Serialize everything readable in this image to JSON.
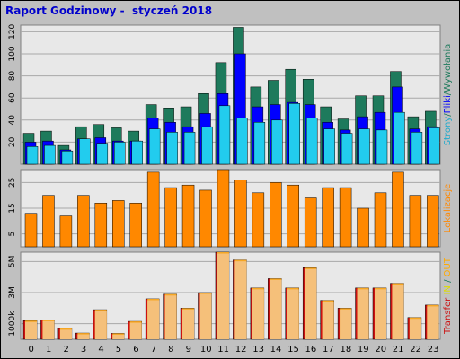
{
  "report_title": "Raport Godzinowy -  styczeń 2018",
  "colors": {
    "background": "#c0c0c0",
    "plot_bg": "#e8e8e8",
    "grid": "#a8a8a8",
    "title": "#0000cc",
    "pages": "#1e7a5c",
    "files": "#0000ff",
    "hits": "#22ccee",
    "transfer_total": "#cc1111",
    "transfer_in": "#f5a623",
    "transfer_out": "#f5c07a",
    "visits_bar": "#ff8800",
    "label_pages": "#22aacc",
    "label_files": "#0000ff",
    "label_hits": "#1e7a5c",
    "label_visits": "#ff8800",
    "label_transfer": "#cc1111",
    "label_in": "#dddd00",
    "label_out": "#ffaa00"
  },
  "side_labels": {
    "panel1": [
      {
        "text": "Strony",
        "color_key": "label_pages"
      },
      {
        "text": "/",
        "color_key": "label_hits"
      },
      {
        "text": "Pliki",
        "color_key": "label_files"
      },
      {
        "text": "/",
        "color_key": "label_hits"
      },
      {
        "text": "Wywołania",
        "color_key": "label_hits"
      }
    ],
    "panel2": [
      {
        "text": "Lokalizacje",
        "color_key": "label_visits"
      }
    ],
    "panel3": [
      {
        "text": "Transfer",
        "color_key": "label_transfer"
      },
      {
        "text": " IN",
        "color_key": "label_in"
      },
      {
        "text": " / ",
        "color_key": "label_hits"
      },
      {
        "text": "OUT",
        "color_key": "label_out"
      }
    ]
  },
  "chart_data": [
    {
      "type": "bar",
      "categories": [
        "0",
        "1",
        "2",
        "3",
        "4",
        "5",
        "6",
        "7",
        "8",
        "9",
        "10",
        "11",
        "12",
        "13",
        "14",
        "15",
        "16",
        "17",
        "18",
        "19",
        "20",
        "21",
        "22",
        "23"
      ],
      "y_ticks": [
        "20",
        "40",
        "60",
        "80",
        "100",
        "120"
      ],
      "ylim": [
        0,
        126
      ],
      "series": [
        {
          "name": "Wywołania",
          "values": [
            28,
            30,
            17,
            34,
            36,
            33,
            30,
            54,
            51,
            52,
            64,
            92,
            124,
            70,
            76,
            86,
            77,
            52,
            41,
            62,
            62,
            84,
            43,
            48
          ]
        },
        {
          "name": "Pliki",
          "values": [
            20,
            21,
            13,
            23,
            24,
            21,
            21,
            42,
            38,
            34,
            46,
            64,
            100,
            52,
            54,
            56,
            54,
            38,
            31,
            43,
            47,
            70,
            32,
            34
          ]
        },
        {
          "name": "Strony",
          "values": [
            16,
            17,
            12,
            23,
            19,
            20,
            21,
            32,
            29,
            29,
            34,
            53,
            42,
            38,
            40,
            55,
            42,
            32,
            28,
            32,
            31,
            47,
            29,
            33
          ]
        }
      ]
    },
    {
      "type": "bar",
      "categories": [
        "0",
        "1",
        "2",
        "3",
        "4",
        "5",
        "6",
        "7",
        "8",
        "9",
        "10",
        "11",
        "12",
        "13",
        "14",
        "15",
        "16",
        "17",
        "18",
        "19",
        "20",
        "21",
        "22",
        "23"
      ],
      "y_ticks": [
        "5",
        "15",
        "25"
      ],
      "ylim": [
        0,
        30
      ],
      "series": [
        {
          "name": "Lokalizacje",
          "values": [
            13,
            20,
            12,
            20,
            17,
            18,
            17,
            29,
            23,
            24,
            22,
            30,
            26,
            21,
            25,
            24,
            19,
            23,
            23,
            15,
            21,
            29,
            20,
            20
          ]
        }
      ]
    },
    {
      "type": "bar",
      "categories": [
        "0",
        "1",
        "2",
        "3",
        "4",
        "5",
        "6",
        "7",
        "8",
        "9",
        "10",
        "11",
        "12",
        "13",
        "14",
        "15",
        "16",
        "17",
        "18",
        "19",
        "20",
        "21",
        "22",
        "23"
      ],
      "y_ticks": [
        "1000k",
        "3M",
        "5M"
      ],
      "ylim": [
        0,
        5600
      ],
      "series": [
        {
          "name": "Transfer",
          "values": [
            1200,
            1250,
            700,
            400,
            1900,
            380,
            1150,
            2600,
            2900,
            2000,
            3000,
            5600,
            5100,
            3300,
            3900,
            3300,
            4600,
            2500,
            2000,
            3300,
            3300,
            3600,
            1400,
            2200
          ]
        },
        {
          "name": "IN",
          "values": [
            1200,
            1250,
            700,
            400,
            1900,
            380,
            1150,
            2600,
            2900,
            2000,
            3000,
            5600,
            5100,
            3300,
            3900,
            3300,
            4600,
            2500,
            2000,
            3300,
            3300,
            3600,
            1400,
            2200
          ]
        },
        {
          "name": "OUT",
          "values": [
            1200,
            1250,
            700,
            400,
            1900,
            380,
            1150,
            2600,
            2900,
            2000,
            3000,
            5600,
            5100,
            3300,
            3900,
            3300,
            4600,
            2500,
            2000,
            3300,
            3300,
            3600,
            1400,
            2200
          ]
        }
      ]
    }
  ]
}
